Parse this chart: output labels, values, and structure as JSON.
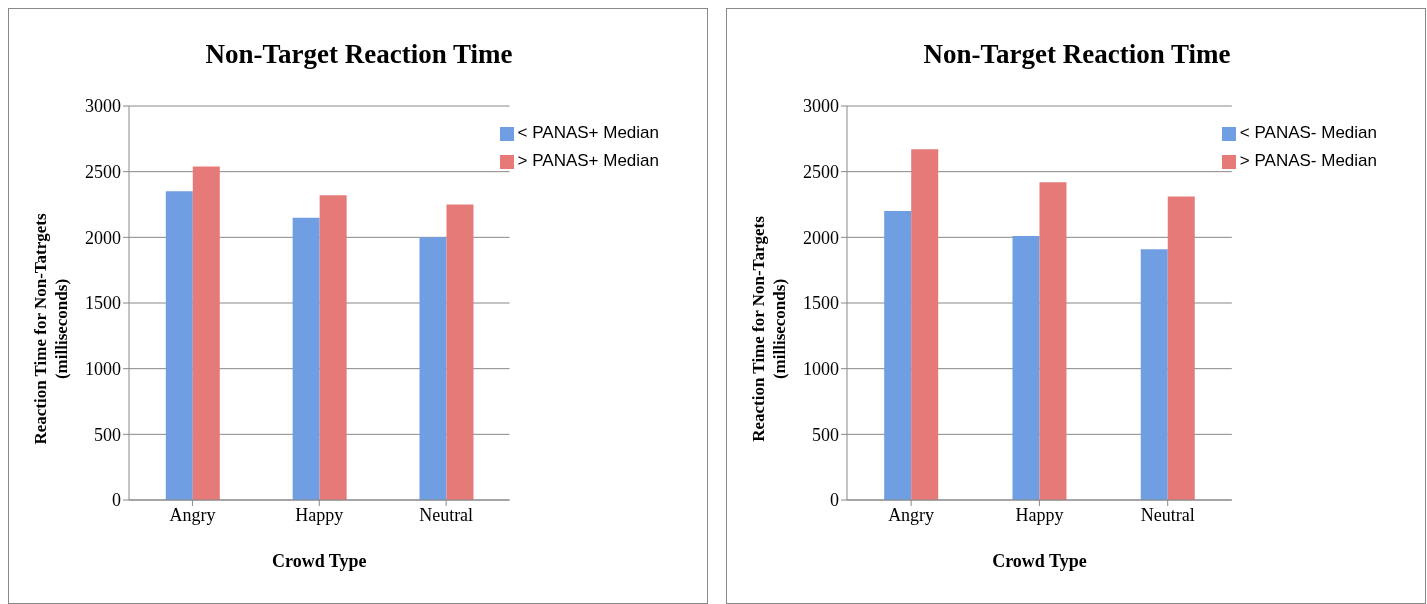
{
  "chart_data": [
    {
      "type": "bar",
      "title": "Non-Target Reaction Time",
      "xlabel": "Crowd Type",
      "ylabel": "Reaction Time for Non-Tatrgets (milliseconds)",
      "categories": [
        "Angry",
        "Happy",
        "Neutral"
      ],
      "series": [
        {
          "name": "< PANAS+ Median",
          "color": "#6f9fe2",
          "values": [
            2350,
            2150,
            2000
          ]
        },
        {
          "name": "> PANAS+ Median",
          "color": "#e57a78",
          "values": [
            2540,
            2320,
            2250
          ]
        }
      ],
      "ylim": [
        0,
        3000
      ],
      "yticks": [
        0,
        500,
        1000,
        1500,
        2000,
        2500,
        3000
      ],
      "grid": "y",
      "legend": "top right"
    },
    {
      "type": "bar",
      "title": "Non-Target Reaction Time",
      "xlabel": "Crowd Type",
      "ylabel": "Reaction Time for Non-Targets (milliseconds)",
      "categories": [
        "Angry",
        "Happy",
        "Neutral"
      ],
      "series": [
        {
          "name": "< PANAS- Median",
          "color": "#6f9fe2",
          "values": [
            2200,
            2010,
            1910
          ]
        },
        {
          "name": "> PANAS- Median",
          "color": "#e57a78",
          "values": [
            2670,
            2420,
            2310
          ]
        }
      ],
      "ylim": [
        0,
        3000
      ],
      "yticks": [
        0,
        500,
        1000,
        1500,
        2000,
        2500,
        3000
      ],
      "grid": "y",
      "legend": "top right"
    }
  ]
}
